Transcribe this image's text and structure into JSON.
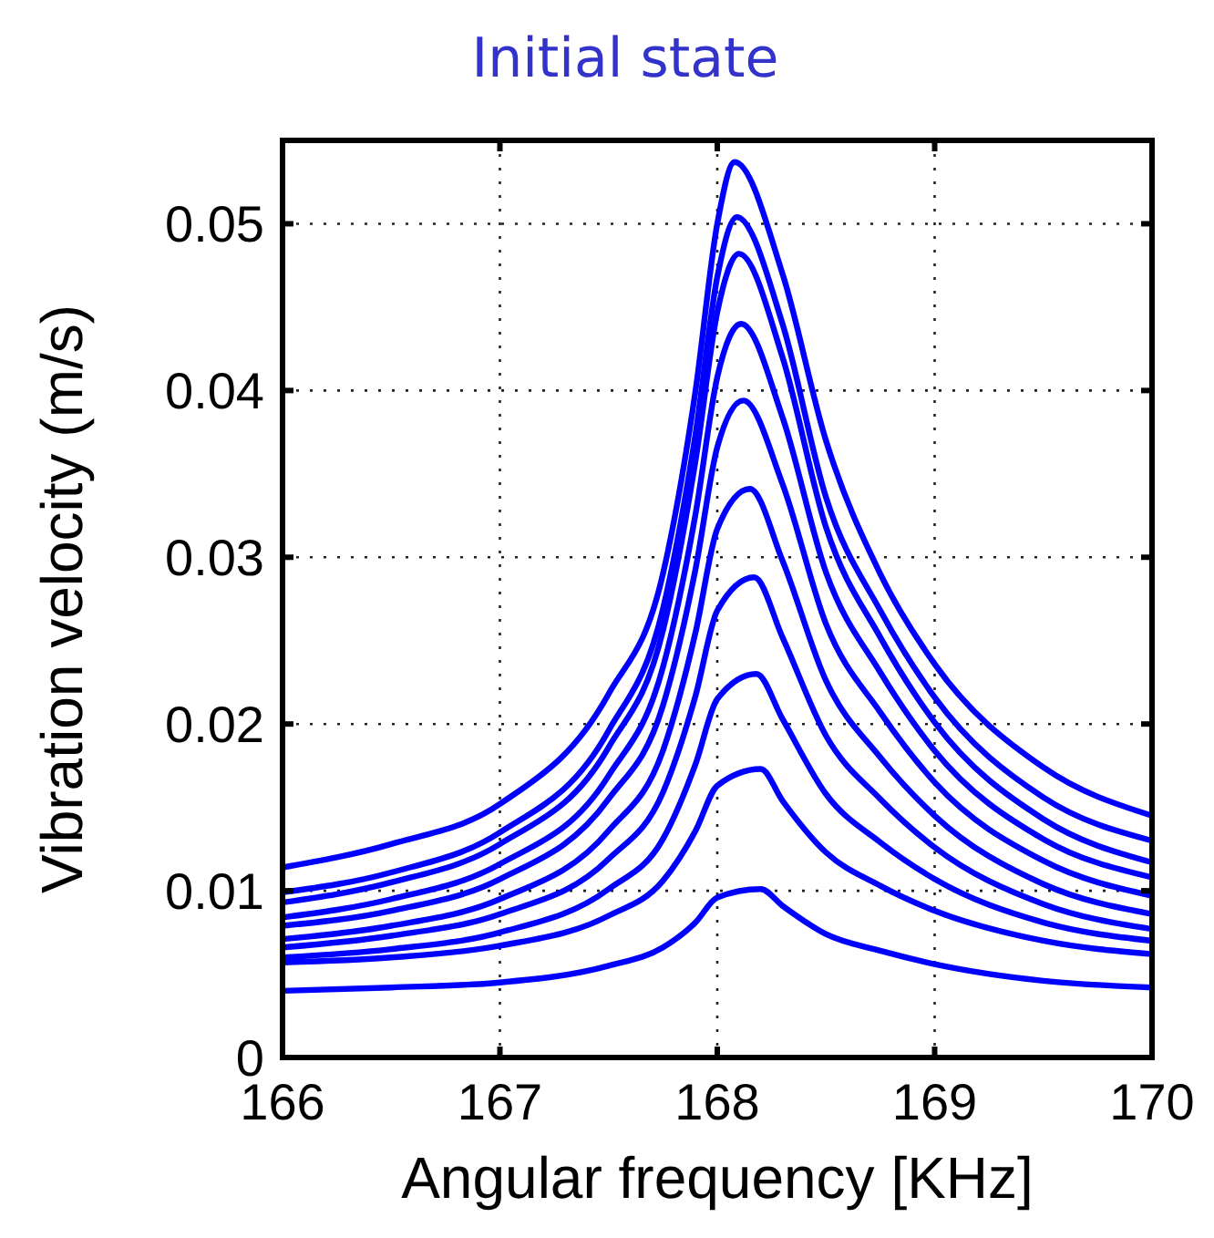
{
  "chart_data": {
    "type": "line",
    "title": "Initial state",
    "xlabel": "Angular frequency [KHz]",
    "ylabel": "Vibration velocity (m/s)",
    "xlim": [
      166,
      170
    ],
    "xticks": [
      166,
      167,
      168,
      169,
      170
    ],
    "ylim": [
      0,
      0.055
    ],
    "yticks": [
      0,
      0.01,
      0.02,
      0.03,
      0.04,
      0.05
    ],
    "grid": true,
    "line_style": "solid",
    "marker": "none",
    "series": [
      {
        "color": "#0000ff",
        "x": [
          166,
          166.5,
          167,
          167.5,
          167.75,
          167.9,
          168.0,
          168.08,
          168.3,
          168.5,
          168.75,
          169,
          169.5,
          170
        ],
        "values": [
          0.0114,
          0.0128,
          0.0152,
          0.0218,
          0.029,
          0.04,
          0.05,
          0.0537,
          0.047,
          0.037,
          0.029,
          0.0236,
          0.0174,
          0.0145
        ]
      },
      {
        "color": "#0000ff",
        "x": [
          166,
          166.5,
          167,
          167.5,
          167.75,
          167.9,
          168.0,
          168.09,
          168.3,
          168.5,
          168.75,
          169,
          169.5,
          170
        ],
        "values": [
          0.0099,
          0.0111,
          0.0135,
          0.0196,
          0.0269,
          0.0374,
          0.0468,
          0.0504,
          0.044,
          0.0336,
          0.0268,
          0.0216,
          0.0156,
          0.013
        ]
      },
      {
        "color": "#0000ff",
        "x": [
          166,
          166.5,
          167,
          167.5,
          167.75,
          167.9,
          168.0,
          168.1,
          168.3,
          168.5,
          168.75,
          169,
          169.5,
          170
        ],
        "values": [
          0.0093,
          0.0105,
          0.0128,
          0.0186,
          0.0256,
          0.0358,
          0.0447,
          0.0482,
          0.042,
          0.0318,
          0.0252,
          0.0201,
          0.0143,
          0.0117
        ]
      },
      {
        "color": "#0000ff",
        "x": [
          166,
          166.5,
          167,
          167.5,
          167.75,
          167.9,
          168.0,
          168.11,
          168.3,
          168.5,
          168.75,
          169,
          169.5,
          170
        ],
        "values": [
          0.0084,
          0.0095,
          0.0116,
          0.0169,
          0.0234,
          0.0326,
          0.0408,
          0.044,
          0.0384,
          0.0291,
          0.0231,
          0.0184,
          0.0131,
          0.0108
        ]
      },
      {
        "color": "#0000ff",
        "x": [
          166,
          166.5,
          167,
          167.5,
          167.75,
          167.9,
          168.0,
          168.12,
          168.3,
          168.5,
          168.75,
          169,
          169.5,
          170
        ],
        "values": [
          0.0079,
          0.0088,
          0.0107,
          0.0155,
          0.0211,
          0.0293,
          0.0366,
          0.0394,
          0.0344,
          0.026,
          0.0207,
          0.0165,
          0.0118,
          0.0097
        ]
      },
      {
        "color": "#0000ff",
        "x": [
          166,
          166.5,
          167,
          167.5,
          167.75,
          167.9,
          168.0,
          168.15,
          168.3,
          168.5,
          168.75,
          169,
          169.5,
          170
        ],
        "values": [
          0.0071,
          0.0079,
          0.0095,
          0.0136,
          0.0184,
          0.0255,
          0.0317,
          0.0341,
          0.0298,
          0.0226,
          0.018,
          0.0145,
          0.0104,
          0.0086
        ]
      },
      {
        "color": "#0000ff",
        "x": [
          166,
          166.5,
          167,
          167.5,
          167.75,
          167.9,
          168.0,
          168.17,
          168.3,
          168.5,
          168.75,
          169,
          169.5,
          170
        ],
        "values": [
          0.0066,
          0.0073,
          0.0086,
          0.0119,
          0.0159,
          0.0217,
          0.0268,
          0.0288,
          0.0252,
          0.0193,
          0.0155,
          0.0126,
          0.0092,
          0.0077
        ]
      },
      {
        "color": "#0000ff",
        "x": [
          166,
          166.5,
          167,
          167.5,
          167.75,
          167.9,
          168.0,
          168.18,
          168.3,
          168.5,
          168.75,
          169,
          169.5,
          170
        ],
        "values": [
          0.006,
          0.0065,
          0.0075,
          0.0101,
          0.0131,
          0.0176,
          0.0215,
          0.023,
          0.0203,
          0.0158,
          0.0129,
          0.0107,
          0.0081,
          0.007
        ]
      },
      {
        "color": "#0000ff",
        "x": [
          166,
          166.5,
          167,
          167.5,
          167.75,
          167.9,
          168.0,
          168.2,
          168.3,
          168.5,
          168.75,
          169,
          169.5,
          170
        ],
        "values": [
          0.0057,
          0.006,
          0.0067,
          0.0085,
          0.0106,
          0.0136,
          0.0163,
          0.0173,
          0.0154,
          0.0123,
          0.0103,
          0.0088,
          0.007,
          0.0062
        ]
      },
      {
        "color": "#0000ff",
        "x": [
          166,
          166.5,
          167,
          167.5,
          167.75,
          167.9,
          168.0,
          168.2,
          168.3,
          168.5,
          168.75,
          169,
          169.5,
          170
        ],
        "values": [
          0.004,
          0.0042,
          0.0045,
          0.0055,
          0.0066,
          0.0081,
          0.0096,
          0.0101,
          0.0091,
          0.0074,
          0.0064,
          0.0056,
          0.0046,
          0.0042
        ]
      }
    ]
  }
}
